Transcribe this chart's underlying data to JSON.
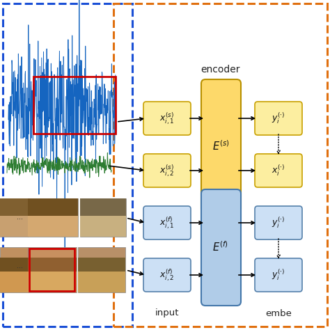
{
  "bg_color": "#ffffff",
  "audio_wave1_color": "#1565c0",
  "audio_wave2_color": "#2e7d32",
  "encoder_label": "encoder",
  "input_label": "input",
  "embed_label": "embe",
  "yellow_light": "#fceea0",
  "yellow_dark": "#f5c518",
  "yellow_encoder_top": "#fdd96a",
  "yellow_encoder_bot": "#f0b020",
  "blue_light": "#cce0f5",
  "blue_dark": "#6699cc",
  "blue_encoder_top": "#b0cce8",
  "blue_encoder_bot": "#5588bb",
  "arrow_color": "#111111",
  "red_rect_color": "#cc0000",
  "blue_dash_color": "#1a4fd6",
  "orange_dash_color": "#e07010",
  "face_skin1": "#d4a574",
  "face_skin2": "#c8986a",
  "face_hair1": "#8b6914",
  "face_bg1": "#c8b090",
  "face_bg2": "#e8c090"
}
